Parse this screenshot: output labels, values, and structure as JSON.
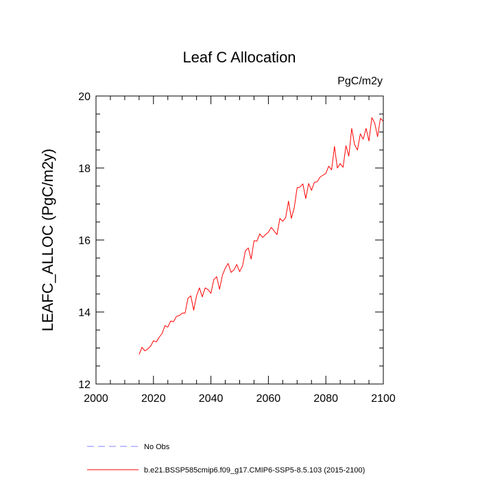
{
  "chart_data": {
    "type": "line",
    "title": "Leaf C Allocation",
    "units_label": "PgC/m2y",
    "xlabel": "",
    "ylabel": "LEAFC_ALLOC  (PgC/m2y)",
    "xlim": [
      2000,
      2100
    ],
    "ylim": [
      12,
      20
    ],
    "x_major_ticks": [
      2000,
      2020,
      2040,
      2060,
      2080,
      2100
    ],
    "x_tick_labels": [
      "2000",
      "2020",
      "2040",
      "2060",
      "2080",
      "2100"
    ],
    "y_major_ticks": [
      12,
      14,
      16,
      18,
      20
    ],
    "y_tick_labels": [
      "12",
      "14",
      "16",
      "18",
      "20"
    ],
    "grid": false,
    "legend_placement": "bottom-left",
    "legend": [
      {
        "label": "No Obs",
        "color": "#8080ff",
        "dash": "dashed"
      },
      {
        "label": "b.e21.BSSP585cmip6.f09_g17.CMIP6-SSP5-8.5.103 (2015-2100)",
        "color": "#ff0000",
        "dash": "solid"
      }
    ],
    "series": [
      {
        "color": "#ff0000",
        "x": [
          2015,
          2016,
          2017,
          2018,
          2019,
          2020,
          2021,
          2022,
          2023,
          2024,
          2025,
          2026,
          2027,
          2028,
          2029,
          2030,
          2031,
          2032,
          2033,
          2034,
          2035,
          2036,
          2037,
          2038,
          2039,
          2040,
          2041,
          2042,
          2043,
          2044,
          2045,
          2046,
          2047,
          2048,
          2049,
          2050,
          2051,
          2052,
          2053,
          2054,
          2055,
          2056,
          2057,
          2058,
          2059,
          2060,
          2061,
          2062,
          2063,
          2064,
          2065,
          2066,
          2067,
          2068,
          2069,
          2070,
          2071,
          2072,
          2073,
          2074,
          2075,
          2076,
          2077,
          2078,
          2079,
          2080,
          2081,
          2082,
          2083,
          2084,
          2085,
          2086,
          2087,
          2088,
          2089,
          2090,
          2091,
          2092,
          2093,
          2094,
          2095,
          2096,
          2097,
          2098,
          2099,
          2100
        ],
        "y": [
          12.82,
          13.02,
          12.92,
          12.97,
          13.05,
          13.2,
          13.17,
          13.3,
          13.4,
          13.62,
          13.58,
          13.75,
          13.73,
          13.88,
          13.9,
          13.97,
          13.97,
          14.38,
          14.45,
          14.05,
          14.45,
          14.67,
          14.42,
          14.67,
          14.62,
          14.52,
          14.9,
          14.98,
          14.63,
          15.02,
          15.22,
          15.35,
          15.1,
          15.17,
          15.32,
          15.12,
          15.28,
          15.7,
          15.78,
          15.47,
          15.98,
          15.97,
          16.17,
          16.07,
          16.15,
          16.22,
          16.35,
          16.25,
          16.15,
          16.6,
          16.52,
          16.62,
          17.08,
          16.6,
          16.9,
          17.45,
          17.47,
          17.56,
          17.15,
          17.57,
          17.38,
          17.6,
          17.62,
          17.75,
          17.8,
          17.85,
          18.05,
          17.95,
          18.6,
          18.0,
          18.12,
          18.02,
          18.62,
          18.33,
          19.1,
          18.65,
          18.5,
          18.95,
          18.8,
          19.1,
          18.75,
          19.4,
          19.25,
          18.87,
          19.38,
          19.3
        ]
      }
    ]
  }
}
